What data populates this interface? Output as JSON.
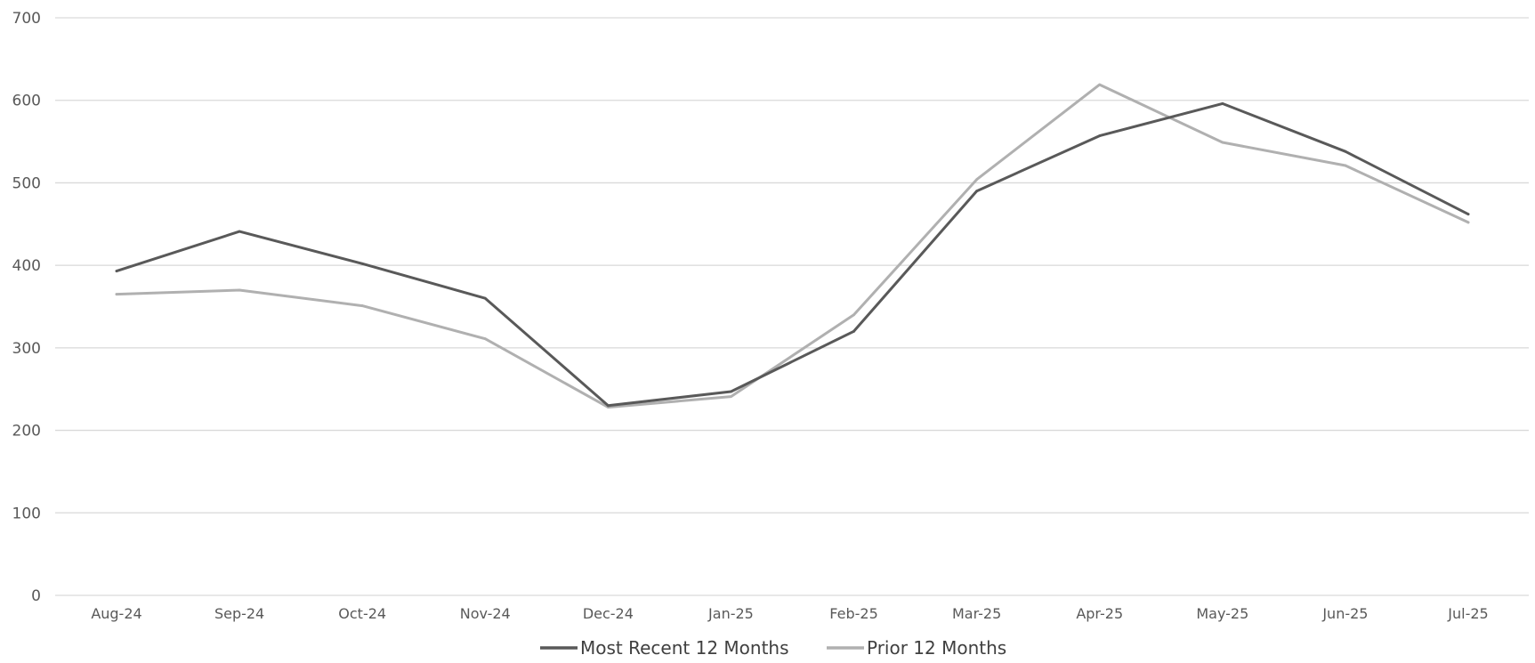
{
  "chart_data": {
    "type": "line",
    "title": "",
    "xlabel": "",
    "ylabel": "",
    "ylim": [
      0,
      700
    ],
    "yticks": [
      0,
      100,
      200,
      300,
      400,
      500,
      600,
      700
    ],
    "grid": true,
    "legend_position": "bottom",
    "categories": [
      "Aug-24",
      "Sep-24",
      "Oct-24",
      "Nov-24",
      "Dec-24",
      "Jan-25",
      "Feb-25",
      "Mar-25",
      "Apr-25",
      "May-25",
      "Jun-25",
      "Jul-25"
    ],
    "series": [
      {
        "name": "Most Recent 12 Months",
        "color": "#595959",
        "values": [
          393,
          441,
          402,
          360,
          230,
          247,
          320,
          490,
          557,
          596,
          538,
          462
        ]
      },
      {
        "name": "Prior 12 Months",
        "color": "#b0b0b0",
        "values": [
          365,
          370,
          351,
          311,
          228,
          241,
          340,
          504,
          619,
          549,
          521,
          452
        ]
      }
    ]
  }
}
